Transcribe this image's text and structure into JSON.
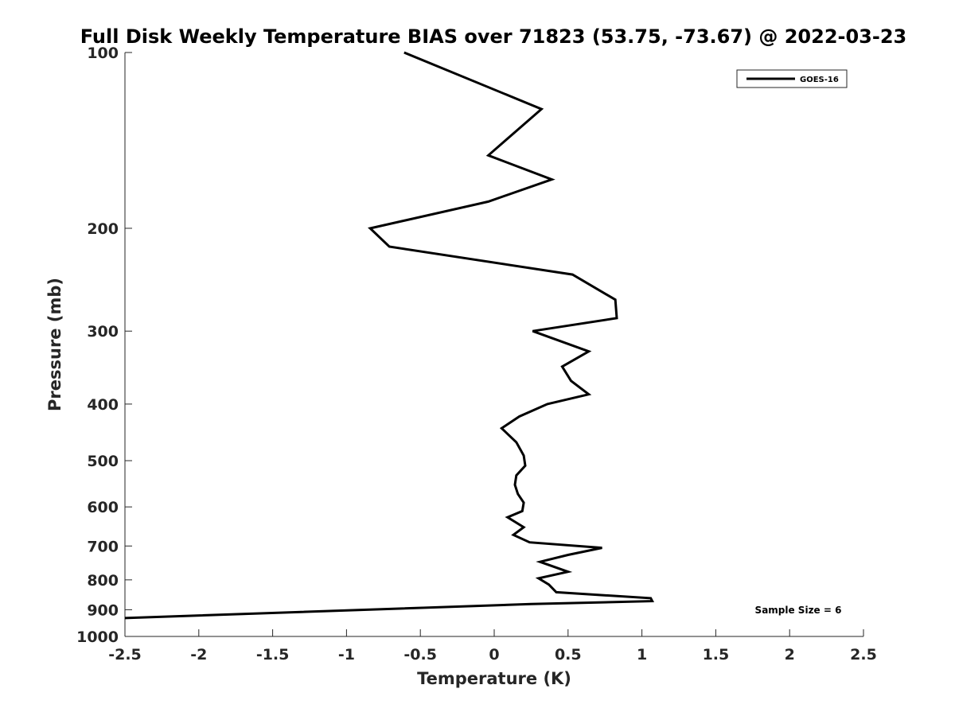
{
  "chart_data": {
    "type": "line",
    "title": "Full Disk Weekly Temperature BIAS over 71823 (53.75, -73.67) @ 2022-03-23",
    "xlabel": "Temperature (K)",
    "ylabel": "Pressure (mb)",
    "xlim": [
      -2.5,
      2.5
    ],
    "ylim": [
      100,
      1000
    ],
    "y_scale": "log",
    "y_reversed": true,
    "grid": false,
    "legend_position": "top-right",
    "x_ticks": [
      -2.5,
      -2,
      -1.5,
      -1,
      -0.5,
      0,
      0.5,
      1,
      1.5,
      2,
      2.5
    ],
    "x_tick_labels": [
      "-2.5",
      "-2",
      "-1.5",
      "-1",
      "-0.5",
      "0",
      "0.5",
      "1",
      "1.5",
      "2",
      "2.5"
    ],
    "y_ticks": [
      100,
      200,
      300,
      400,
      500,
      600,
      700,
      800,
      900,
      1000
    ],
    "y_tick_labels": [
      "100",
      "200",
      "300",
      "400",
      "500",
      "600",
      "700",
      "800",
      "900",
      "1000"
    ],
    "series": [
      {
        "name": "GOES-16",
        "color": "#000000",
        "points": [
          {
            "x": -0.61,
            "y": 100
          },
          {
            "x": 0.32,
            "y": 125
          },
          {
            "x": -0.04,
            "y": 150
          },
          {
            "x": 0.39,
            "y": 165
          },
          {
            "x": -0.04,
            "y": 180
          },
          {
            "x": -0.84,
            "y": 200
          },
          {
            "x": -0.71,
            "y": 215
          },
          {
            "x": 0.53,
            "y": 240
          },
          {
            "x": 0.82,
            "y": 265
          },
          {
            "x": 0.83,
            "y": 285
          },
          {
            "x": 0.26,
            "y": 300
          },
          {
            "x": 0.64,
            "y": 325
          },
          {
            "x": 0.46,
            "y": 345
          },
          {
            "x": 0.52,
            "y": 365
          },
          {
            "x": 0.64,
            "y": 385
          },
          {
            "x": 0.36,
            "y": 400
          },
          {
            "x": 0.17,
            "y": 420
          },
          {
            "x": 0.05,
            "y": 440
          },
          {
            "x": 0.15,
            "y": 465
          },
          {
            "x": 0.2,
            "y": 490
          },
          {
            "x": 0.21,
            "y": 510
          },
          {
            "x": 0.15,
            "y": 530
          },
          {
            "x": 0.14,
            "y": 550
          },
          {
            "x": 0.16,
            "y": 570
          },
          {
            "x": 0.2,
            "y": 590
          },
          {
            "x": 0.19,
            "y": 610
          },
          {
            "x": 0.09,
            "y": 625
          },
          {
            "x": 0.2,
            "y": 650
          },
          {
            "x": 0.13,
            "y": 670
          },
          {
            "x": 0.24,
            "y": 690
          },
          {
            "x": 0.73,
            "y": 705
          },
          {
            "x": 0.5,
            "y": 725
          },
          {
            "x": 0.31,
            "y": 745
          },
          {
            "x": 0.5,
            "y": 775
          },
          {
            "x": 0.3,
            "y": 795
          },
          {
            "x": 0.37,
            "y": 815
          },
          {
            "x": 0.42,
            "y": 840
          },
          {
            "x": 1.06,
            "y": 860
          },
          {
            "x": 1.07,
            "y": 870
          },
          {
            "x": 0.25,
            "y": 880
          },
          {
            "x": -2.5,
            "y": 930
          }
        ]
      }
    ],
    "annotation": "Sample Size = 6"
  }
}
